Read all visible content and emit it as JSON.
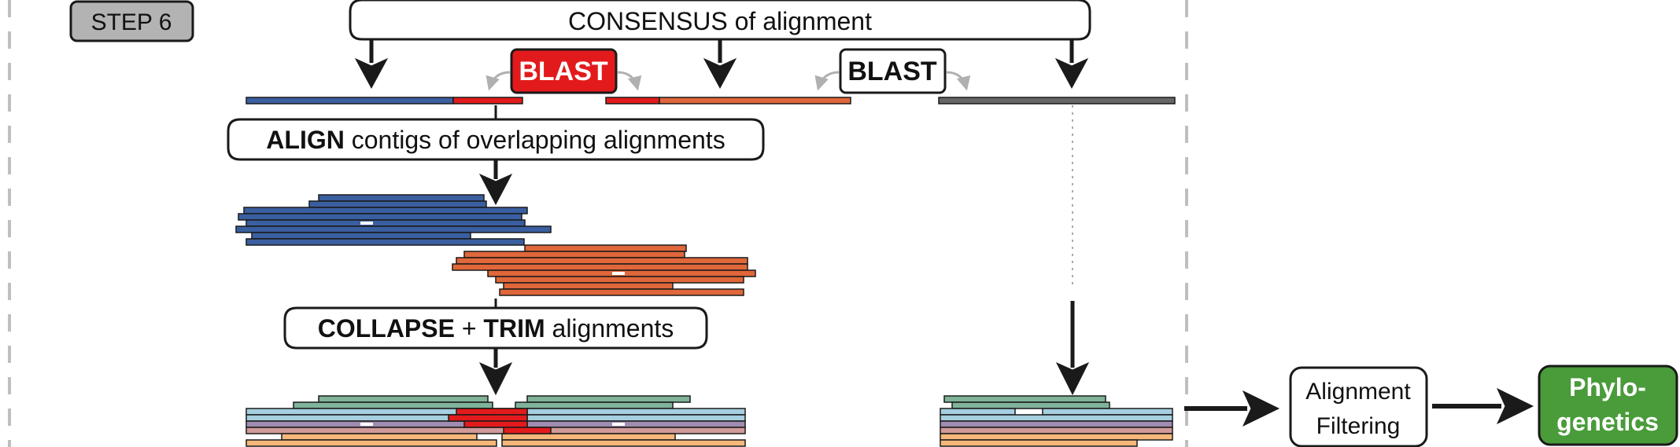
{
  "step": {
    "label": "STEP 6"
  },
  "consensus": {
    "label": "CONSENSUS of alignment"
  },
  "blast": {
    "red": "BLAST",
    "white": "BLAST"
  },
  "align": {
    "bold": "ALIGN",
    "rest": " contigs of overlapping alignments"
  },
  "collapse": {
    "bold1": "COLLAPSE",
    "mid": " + ",
    "bold2": "TRIM",
    "rest": " alignments"
  },
  "filtering": {
    "line1": "Alignment",
    "line2": "Filtering"
  },
  "phylo": {
    "line1": "Phylo-",
    "line2": "genetics"
  },
  "colors": {
    "blue": "#3a5fa0",
    "orange": "#e0673a",
    "red": "#e31a1c",
    "gray": "#666666",
    "green_read": "#7fb39a",
    "light_blue": "#a6cfe0",
    "purple": "#a08cb0",
    "pink": "#d19a9a",
    "peach": "#f5b77a",
    "phylo_green": "#4a9b3a",
    "step_gray": "#b3b3b3"
  }
}
